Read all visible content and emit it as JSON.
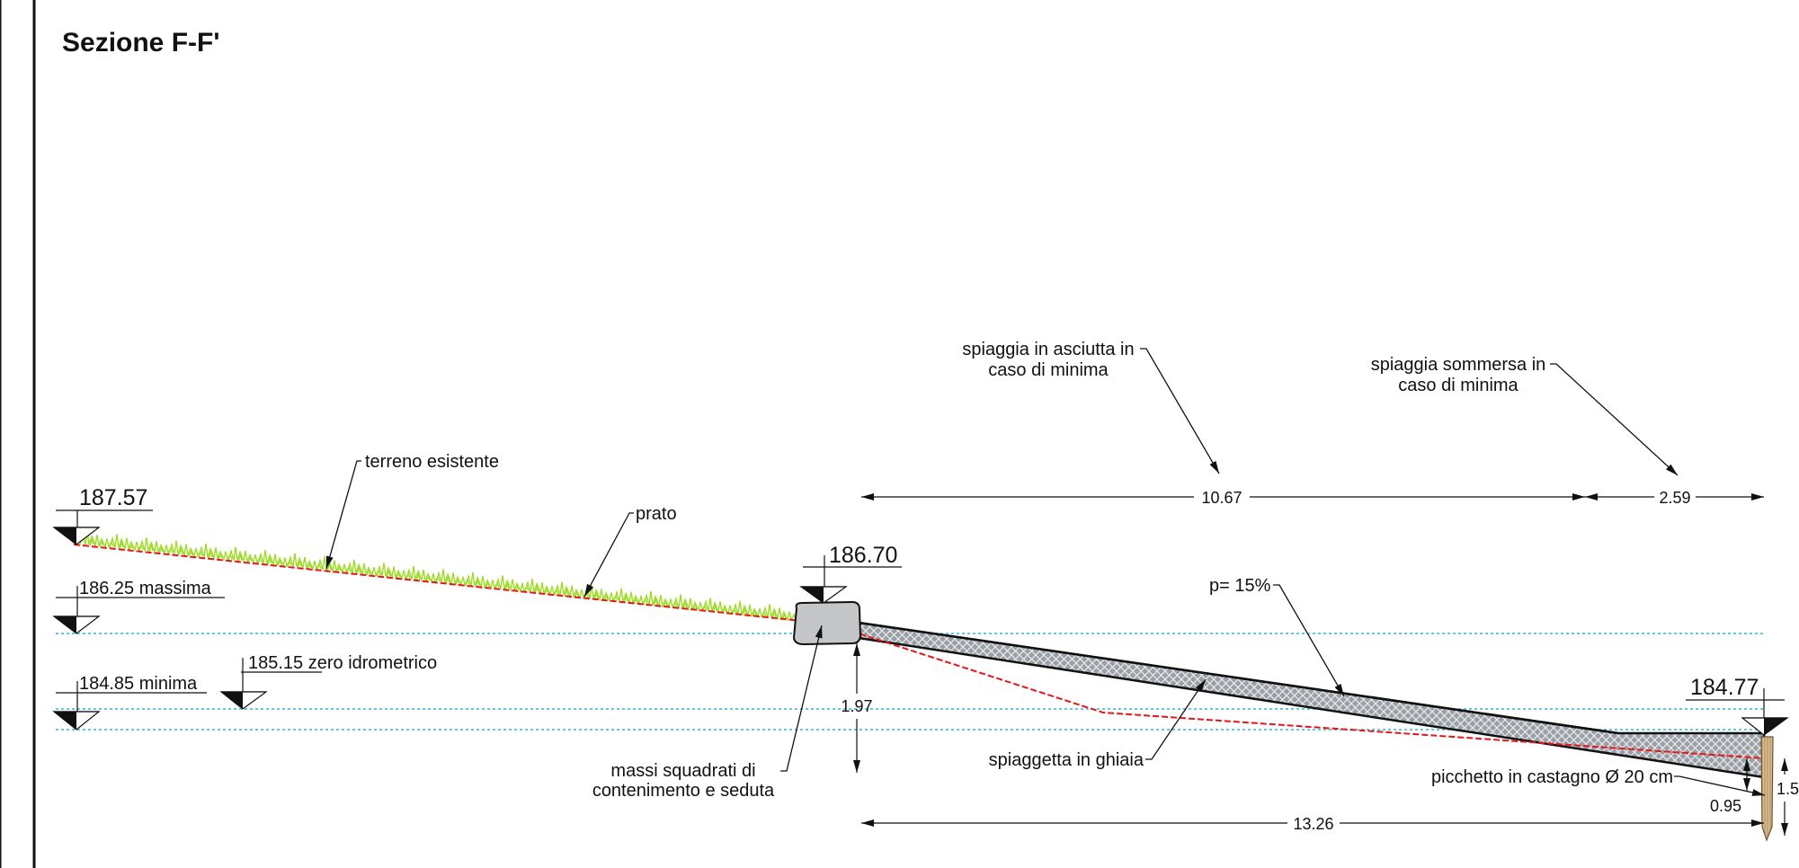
{
  "title": "Sezione F-F'",
  "elevations": {
    "top_left": "187.57",
    "boulder": "186.70",
    "right": "184.77",
    "massima": "186.25 massima",
    "minima": "184.85 minima",
    "zero": "185.15 zero idrometrico"
  },
  "labels": {
    "terreno": "terreno esistente",
    "prato": "prato",
    "asciutta_1": "spiaggia in asciutta in",
    "asciutta_2": "caso di minima",
    "sommersa_1": "spiaggia sommersa in",
    "sommersa_2": "caso di minima",
    "slope": "p= 15%",
    "massi_1": "massi squadrati di",
    "massi_2": "contenimento e seduta",
    "ghiaia": "spiaggetta in ghiaia",
    "picchetto": "picchetto in castagno Ø 20 cm"
  },
  "dimensions": {
    "d1067": "10.67",
    "d259": "2.59",
    "d197": "1.97",
    "d1326": "13.26",
    "d095": "0.95",
    "d15": "1.5"
  },
  "colors": {
    "existing_ground": "#e8141c",
    "water_levels": "#2fb6d6",
    "grass": "#9fdc2a",
    "gravel": "#8a8f94",
    "boulder": "#c4c6c8",
    "stake": "#d2b48c"
  }
}
